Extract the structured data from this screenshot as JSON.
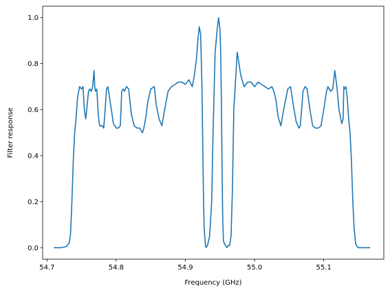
{
  "chart_data": {
    "type": "line",
    "xlabel": "Frequency (GHz)",
    "ylabel": "Filter response",
    "xlim": [
      54.6937,
      55.1868
    ],
    "ylim": [
      -0.05,
      1.05
    ],
    "xticks": [
      54.7,
      54.8,
      54.9,
      55.0,
      55.1
    ],
    "xtick_labels": [
      "54.7",
      "54.8",
      "54.9",
      "55.0",
      "55.1"
    ],
    "yticks": [
      0.0,
      0.2,
      0.4,
      0.6,
      0.8,
      1.0
    ],
    "ytick_labels": [
      "0.0",
      "0.2",
      "0.4",
      "0.6",
      "0.8",
      "1.0"
    ],
    "grid": false,
    "series": [
      {
        "color": "#1f77b4",
        "x": [
          54.71,
          54.72,
          54.728,
          54.732,
          54.734,
          54.736,
          54.738,
          54.74,
          54.742,
          54.744,
          54.747,
          54.75,
          54.752,
          54.754,
          54.756,
          54.758,
          54.76,
          54.762,
          54.764,
          54.766,
          54.768,
          54.769,
          54.77,
          54.772,
          54.774,
          54.776,
          54.78,
          54.782,
          54.784,
          54.786,
          54.788,
          54.79,
          54.793,
          54.796,
          54.8,
          54.803,
          54.806,
          54.808,
          54.81,
          54.812,
          54.815,
          54.818,
          54.822,
          54.826,
          54.83,
          54.834,
          54.836,
          54.838,
          54.84,
          54.843,
          54.846,
          54.85,
          54.855,
          54.858,
          54.862,
          54.866,
          54.87,
          54.875,
          54.88,
          54.885,
          54.89,
          54.895,
          54.9,
          54.905,
          54.91,
          54.913,
          54.916,
          54.918,
          54.92,
          54.922,
          54.924,
          54.926,
          54.927,
          54.928,
          54.929,
          54.93,
          54.932,
          54.935,
          54.938,
          54.94,
          54.943,
          54.946,
          54.948,
          54.95,
          54.951,
          54.952,
          54.953,
          54.954,
          54.955,
          54.956,
          54.958,
          54.96,
          54.962,
          54.964,
          54.966,
          54.968,
          54.97,
          54.975,
          54.98,
          54.985,
          54.99,
          54.995,
          55.0,
          55.005,
          55.01,
          55.015,
          55.02,
          55.025,
          55.028,
          55.031,
          55.034,
          55.038,
          55.042,
          55.048,
          55.052,
          55.056,
          55.06,
          55.064,
          55.066,
          55.068,
          55.07,
          55.073,
          55.076,
          55.08,
          55.084,
          55.088,
          55.092,
          55.096,
          55.1,
          55.104,
          55.106,
          55.108,
          55.11,
          55.113,
          55.116,
          55.119,
          55.122,
          55.126,
          55.128,
          55.129,
          55.13,
          55.132,
          55.134,
          55.136,
          55.138,
          55.14,
          55.142,
          55.144,
          55.146,
          55.148,
          55.15,
          55.155,
          55.16,
          55.167
        ],
        "y": [
          0.0,
          0.0,
          0.005,
          0.02,
          0.06,
          0.2,
          0.38,
          0.5,
          0.56,
          0.65,
          0.7,
          0.69,
          0.7,
          0.6,
          0.56,
          0.62,
          0.68,
          0.69,
          0.68,
          0.7,
          0.77,
          0.7,
          0.68,
          0.69,
          0.58,
          0.53,
          0.53,
          0.52,
          0.6,
          0.69,
          0.7,
          0.66,
          0.6,
          0.54,
          0.52,
          0.52,
          0.53,
          0.68,
          0.69,
          0.68,
          0.7,
          0.69,
          0.58,
          0.53,
          0.52,
          0.52,
          0.51,
          0.5,
          0.52,
          0.57,
          0.64,
          0.69,
          0.7,
          0.62,
          0.56,
          0.53,
          0.6,
          0.68,
          0.7,
          0.71,
          0.72,
          0.72,
          0.71,
          0.73,
          0.7,
          0.75,
          0.82,
          0.9,
          0.96,
          0.93,
          0.7,
          0.25,
          0.1,
          0.05,
          0.01,
          0.0,
          0.01,
          0.05,
          0.2,
          0.5,
          0.85,
          0.95,
          1.0,
          0.95,
          0.85,
          0.65,
          0.35,
          0.12,
          0.03,
          0.02,
          0.01,
          0.0,
          0.01,
          0.01,
          0.05,
          0.25,
          0.6,
          0.85,
          0.75,
          0.7,
          0.72,
          0.72,
          0.7,
          0.72,
          0.71,
          0.7,
          0.69,
          0.7,
          0.68,
          0.64,
          0.57,
          0.53,
          0.6,
          0.69,
          0.7,
          0.62,
          0.55,
          0.52,
          0.53,
          0.6,
          0.68,
          0.7,
          0.69,
          0.6,
          0.53,
          0.52,
          0.52,
          0.53,
          0.6,
          0.68,
          0.7,
          0.69,
          0.68,
          0.69,
          0.77,
          0.7,
          0.6,
          0.54,
          0.56,
          0.7,
          0.69,
          0.7,
          0.65,
          0.56,
          0.5,
          0.38,
          0.2,
          0.08,
          0.02,
          0.005,
          0.0,
          0.0,
          0.0,
          0.0
        ]
      }
    ]
  }
}
